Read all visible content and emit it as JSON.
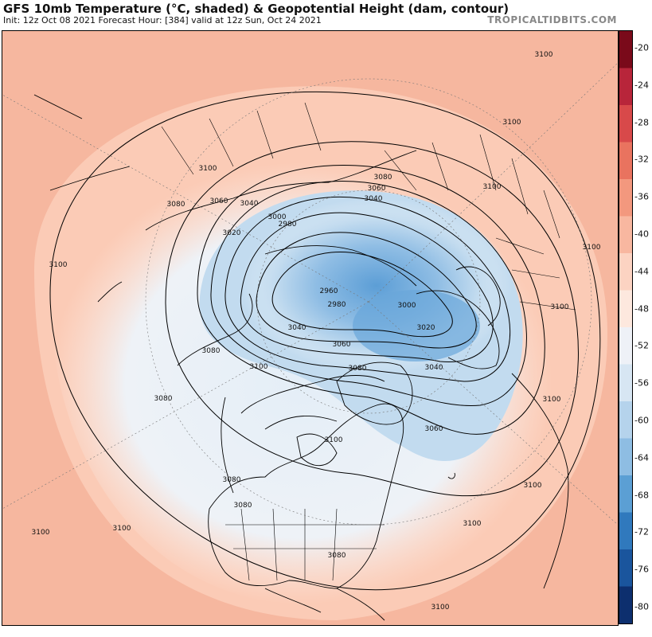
{
  "header": {
    "title": "GFS 10mb Temperature (°C, shaded) & Geopotential Height (dam, contour)",
    "subtitle": "Init: 12z Oct 08 2021   Forecast Hour: [384]   valid at 12z Sun, Oct 24 2021",
    "credit": "TROPICALTIDBITS.COM"
  },
  "colorbar": {
    "labels": [
      "-20",
      "-24",
      "-28",
      "-32",
      "-36",
      "-40",
      "-44",
      "-48",
      "-52",
      "-56",
      "-60",
      "-64",
      "-68",
      "-72",
      "-76",
      "-80"
    ],
    "colors_top_to_bottom": [
      "#7a0a1a",
      "#b8253a",
      "#d8494a",
      "#e9735f",
      "#f3987e",
      "#f8b7a0",
      "#fcd3c2",
      "#fde8de",
      "#eef1f7",
      "#d7e6f3",
      "#b5d3ec",
      "#8ebde3",
      "#5b9fd4",
      "#3079bd",
      "#1a559d",
      "#0d2f6e"
    ]
  },
  "map": {
    "colors": {
      "warm_background": "#f6b79f",
      "warm_light": "#fdd3c2",
      "cool_light": "#e4eef7",
      "cool_mid": "#c2dbef",
      "cool_core": "#8fbde4",
      "cold_center": "#5c9ed6",
      "land_border": "#000000",
      "contour": "#000000"
    },
    "contour_labels": [
      {
        "text": "3100",
        "ref": "north-east"
      },
      {
        "text": "3100",
        "ref": "asia-east"
      },
      {
        "text": "3100",
        "ref": "europe-north"
      },
      {
        "text": "3100",
        "ref": "europe-west"
      },
      {
        "text": "3100",
        "ref": "africa-north"
      },
      {
        "text": "3100",
        "ref": "atlantic-east"
      },
      {
        "text": "3100",
        "ref": "atlantic-center"
      },
      {
        "text": "3100",
        "ref": "atlantic-south"
      },
      {
        "text": "3100",
        "ref": "caribbean"
      },
      {
        "text": "3100",
        "ref": "pacific-east"
      },
      {
        "text": "3100",
        "ref": "pacific-west"
      },
      {
        "text": "3100",
        "ref": "pacific-south"
      },
      {
        "text": "3100",
        "ref": "siberia-west"
      },
      {
        "text": "3100",
        "ref": "alaska"
      },
      {
        "text": "3100",
        "ref": "hudson"
      },
      {
        "text": "3080",
        "ref": "arctic-north"
      },
      {
        "text": "3080",
        "ref": "bering"
      },
      {
        "text": "3080",
        "ref": "alaska-south"
      },
      {
        "text": "3080",
        "ref": "pacific-north"
      },
      {
        "text": "3080",
        "ref": "greenland"
      },
      {
        "text": "3080",
        "ref": "canada-south"
      },
      {
        "text": "3080",
        "ref": "usa-north"
      },
      {
        "text": "3080",
        "ref": "atlantic-west"
      },
      {
        "text": "3060",
        "ref": "arctic-inner"
      },
      {
        "text": "3060",
        "ref": "siberia-east"
      },
      {
        "text": "3060",
        "ref": "arctic-canada"
      },
      {
        "text": "3060",
        "ref": "labrador"
      },
      {
        "text": "3040",
        "ref": "arctic-ring"
      },
      {
        "text": "3040",
        "ref": "chukchi"
      },
      {
        "text": "3040",
        "ref": "beaufort"
      },
      {
        "text": "3040",
        "ref": "greenland-east"
      },
      {
        "text": "3020",
        "ref": "east-siberia"
      },
      {
        "text": "3020",
        "ref": "barents"
      },
      {
        "text": "3000",
        "ref": "laptev"
      },
      {
        "text": "3000",
        "ref": "svalbard"
      },
      {
        "text": "2980",
        "ref": "kara-north"
      },
      {
        "text": "2980",
        "ref": "kara-south"
      },
      {
        "text": "2960",
        "ref": "center"
      }
    ]
  }
}
